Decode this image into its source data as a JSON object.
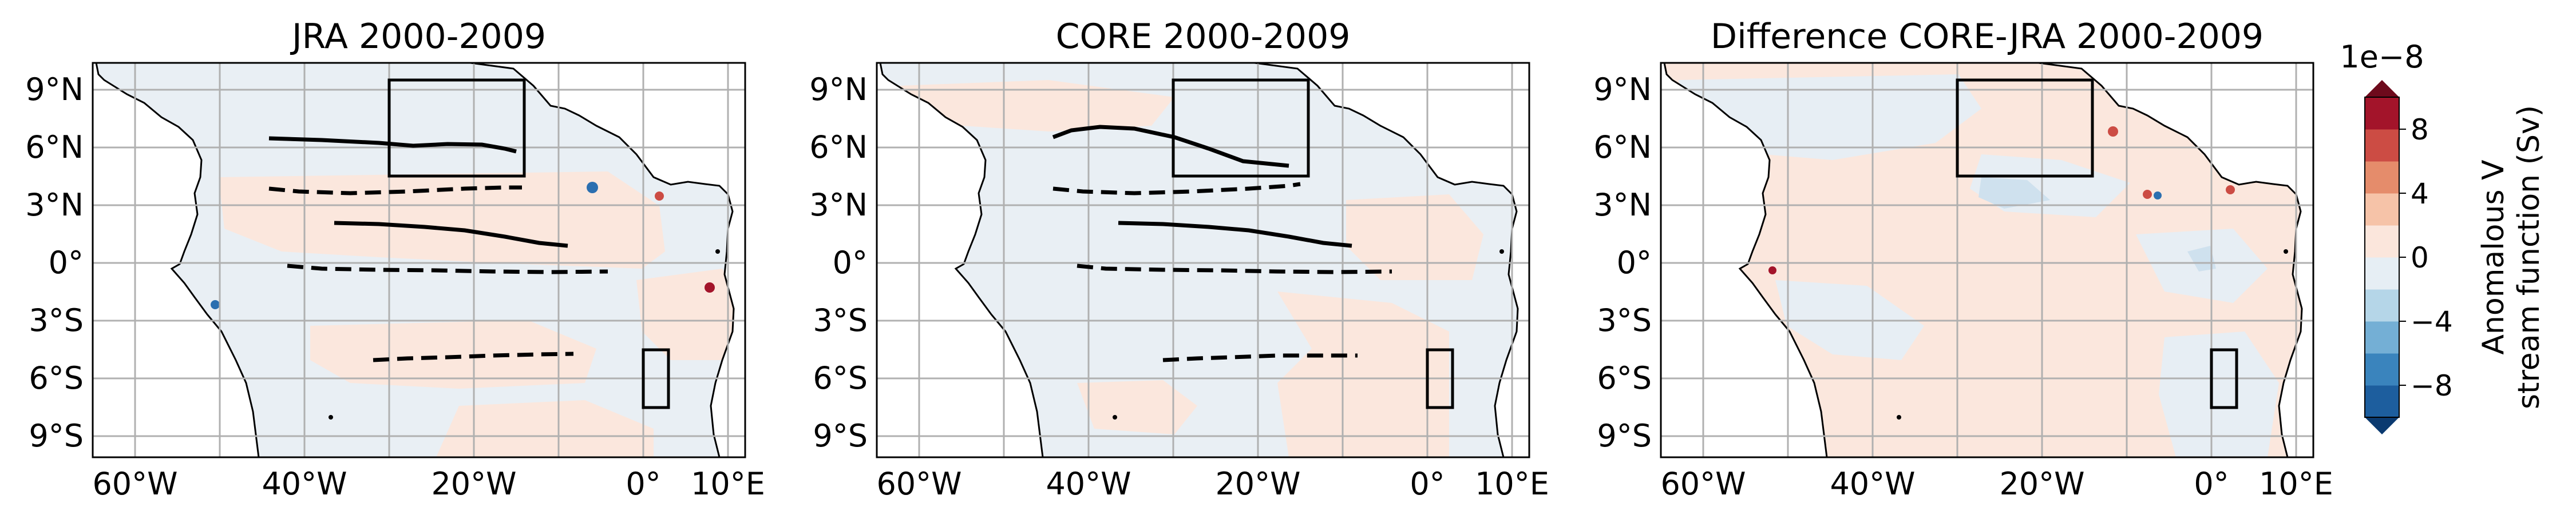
{
  "panels": [
    {
      "title": "JRA 2000-2009",
      "fill": "jra"
    },
    {
      "title": "CORE 2000-2009",
      "fill": "core"
    },
    {
      "title": "Difference CORE-JRA 2000-2009",
      "fill": "diff"
    }
  ],
  "axes": {
    "lon_range": [
      -65,
      12
    ],
    "lat_range": [
      -10,
      10.5
    ],
    "x_ticks": [
      {
        "value": -60,
        "label": "60°W"
      },
      {
        "value": -40,
        "label": "40°W"
      },
      {
        "value": -20,
        "label": "20°W"
      },
      {
        "value": 0,
        "label": "0°"
      },
      {
        "value": 10,
        "label": "10°E"
      }
    ],
    "y_ticks": [
      {
        "value": 9,
        "label": "9°N"
      },
      {
        "value": 6,
        "label": "6°N"
      },
      {
        "value": 3,
        "label": "3°N"
      },
      {
        "value": 0,
        "label": "0°"
      },
      {
        "value": -3,
        "label": "3°S"
      },
      {
        "value": -6,
        "label": "6°S"
      },
      {
        "value": -9,
        "label": "9°S"
      }
    ],
    "grid": true
  },
  "boxes": [
    {
      "lon": [
        -30,
        -14
      ],
      "lat": [
        5,
        10
      ]
    },
    {
      "lon": [
        0,
        3
      ],
      "lat": [
        -7.5,
        -4.5
      ]
    }
  ],
  "colorbar": {
    "label_line1": "Anomalous V",
    "label_line2": "stream function (Sv)",
    "scale": "1e−8",
    "ticks": [
      {
        "value": 8,
        "label": "8"
      },
      {
        "value": 4,
        "label": "4"
      },
      {
        "value": 0,
        "label": "0"
      },
      {
        "value": -4,
        "label": "−4"
      },
      {
        "value": -8,
        "label": "−8"
      }
    ],
    "range": [
      -10,
      10
    ],
    "extend": "both",
    "colors": [
      "#1d5e9e",
      "#3a84bd",
      "#74afd5",
      "#b5d6e8",
      "#e6eef4",
      "#fbe6dc",
      "#f6c3a8",
      "#e58c6b",
      "#cc4c44",
      "#a3142a"
    ],
    "extend_colors": [
      "#0b3a70",
      "#6e0a1c"
    ]
  },
  "colors": {
    "land": "#ffffff",
    "ocean_positive": "#fbe7dd",
    "ocean_negative": "#e7eef4",
    "grid": "#b0b0b0",
    "contour": "#000000"
  }
}
